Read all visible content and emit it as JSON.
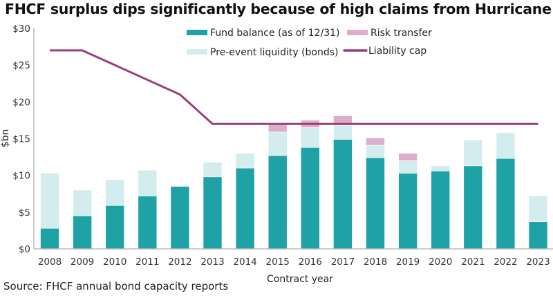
{
  "title": "FHCF surplus dips significantly because of high claims from Hurricane Ian",
  "source": "Source: FHCF annual bond capacity reports",
  "colors": {
    "fund_balance": "#1fa2a6",
    "pre_event_liquidity": "#d3ecee",
    "risk_transfer": "#dcaecb",
    "liability_cap": "#9b3f79"
  },
  "chart_data": {
    "type": "bar",
    "stacked": true,
    "title": "FHCF surplus dips significantly because of high claims from Hurricane Ian",
    "xlabel": "Contract year",
    "ylabel": "$bn",
    "ylim": [
      0,
      30
    ],
    "yticks": [
      0,
      5,
      10,
      15,
      20,
      25,
      30
    ],
    "ytick_labels": [
      "$0",
      "$5",
      "$10",
      "$15",
      "$20",
      "$25",
      "$30"
    ],
    "grid": false,
    "legend_position": "top-right",
    "categories": [
      "2008",
      "2009",
      "2010",
      "2011",
      "2012",
      "2013",
      "2014",
      "2015",
      "2016",
      "2017",
      "2018",
      "2019",
      "2020",
      "2021",
      "2022",
      "2023"
    ],
    "series": [
      {
        "name": "Fund balance (as of 12/31)",
        "kind": "bar",
        "values": [
          2.8,
          4.5,
          5.9,
          7.2,
          8.5,
          9.8,
          11.0,
          12.7,
          13.8,
          14.9,
          12.4,
          10.3,
          10.6,
          11.3,
          12.3,
          3.7
        ]
      },
      {
        "name": "Pre-event liquidity (bonds)",
        "kind": "bar",
        "values": [
          7.5,
          3.5,
          3.5,
          3.5,
          0.0,
          2.0,
          2.0,
          3.2,
          2.7,
          1.9,
          1.7,
          1.7,
          0.7,
          3.5,
          3.5,
          3.5
        ]
      },
      {
        "name": "Risk transfer",
        "kind": "bar",
        "values": [
          0,
          0,
          0,
          0,
          0,
          0,
          0,
          1.1,
          1.0,
          1.3,
          1.0,
          1.0,
          0,
          0,
          0,
          0
        ]
      },
      {
        "name": "Liability cap",
        "kind": "line",
        "values": [
          27,
          27,
          25,
          23,
          21,
          17,
          17,
          17,
          17,
          17,
          17,
          17,
          17,
          17,
          17,
          17
        ]
      }
    ],
    "legend": [
      {
        "label": "Fund balance (as of 12/31)",
        "swatch": "bar"
      },
      {
        "label": "Risk transfer",
        "swatch": "bar"
      },
      {
        "label": "Pre-event liquidity (bonds)",
        "swatch": "bar"
      },
      {
        "label": "Liability cap",
        "swatch": "line"
      }
    ]
  }
}
